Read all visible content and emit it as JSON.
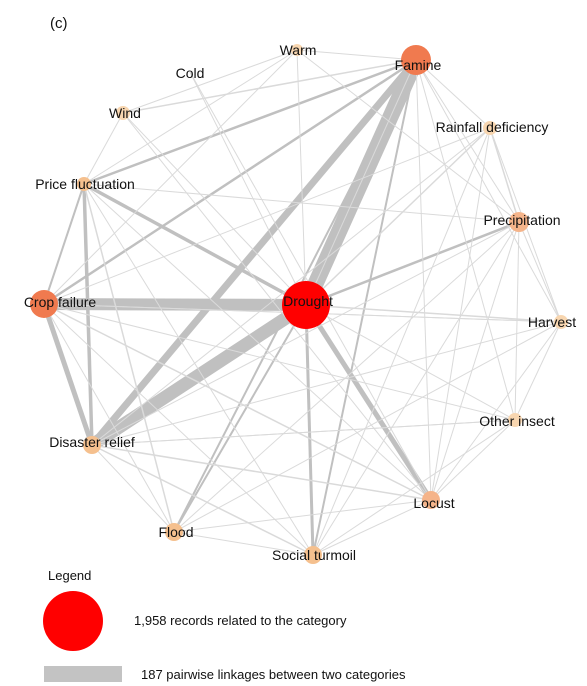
{
  "panel_label": "(c)",
  "nodes": [
    {
      "id": "drought",
      "label": "Drought",
      "color": "#ff0000"
    },
    {
      "id": "famine",
      "label": "Famine",
      "color": "#f07a4f"
    },
    {
      "id": "crop_failure",
      "label": "Crop failure",
      "color": "#f07a4f"
    },
    {
      "id": "price_fluctuation",
      "label": "Price fluctuation",
      "color": "#f5c08e"
    },
    {
      "id": "precipitation",
      "label": "Precipitation",
      "color": "#f5b48a"
    },
    {
      "id": "disaster_relief",
      "label": "Disaster relief",
      "color": "#f5c08e"
    },
    {
      "id": "locust",
      "label": "Locust",
      "color": "#f5b48a"
    },
    {
      "id": "social_turmoil",
      "label": "Social turmoil",
      "color": "#f5c08e"
    },
    {
      "id": "flood",
      "label": "Flood",
      "color": "#f5c08e"
    },
    {
      "id": "harvest",
      "label": "Harvest",
      "color": "#f8d6b0"
    },
    {
      "id": "other_insect",
      "label": "Other insect",
      "color": "#f8d6b0"
    },
    {
      "id": "rainfall_deficiency",
      "label": "Rainfall deficiency",
      "color": "#f8d6b0"
    },
    {
      "id": "wind",
      "label": "Wind",
      "color": "#f8d6b0"
    },
    {
      "id": "warm",
      "label": "Warm",
      "color": "#f8d6b0"
    },
    {
      "id": "cold",
      "label": "Cold",
      "color": "#fbe3c8"
    }
  ],
  "legend": {
    "title": "Legend",
    "node_text": "1,958 records related to the category",
    "node_color": "#ff0000",
    "edge_text": "187 pairwise linkages between two categories",
    "edge_color": "#c3c3c3"
  }
}
